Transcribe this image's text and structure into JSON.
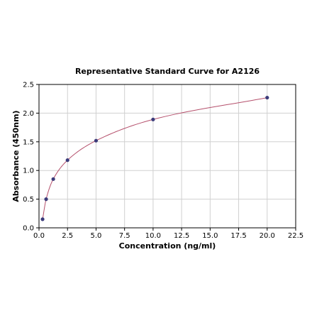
{
  "chart_data": {
    "type": "scatter",
    "title": "Representative Standard Curve for A2126",
    "xlabel": "Concentration (ng/ml)",
    "ylabel": "Absorbance (450nm)",
    "xlim": [
      0,
      22.5
    ],
    "ylim": [
      0,
      2.5
    ],
    "x_ticks": [
      "0.0",
      "2.5",
      "5.0",
      "7.5",
      "10.0",
      "12.5",
      "15.0",
      "17.5",
      "20.0",
      "22.5"
    ],
    "y_ticks": [
      "0.0",
      "0.5",
      "1.0",
      "1.5",
      "2.0",
      "2.5"
    ],
    "grid": true,
    "legend": "none",
    "series": [
      {
        "x": [
          0.313,
          0.625,
          1.25,
          2.5,
          5.0,
          10.0,
          20.0
        ],
        "y": [
          0.15,
          0.5,
          0.85,
          1.18,
          1.52,
          1.89,
          2.27
        ],
        "marker_color": "#3b3b7a",
        "fit_line_color": "#b5506c"
      }
    ]
  }
}
